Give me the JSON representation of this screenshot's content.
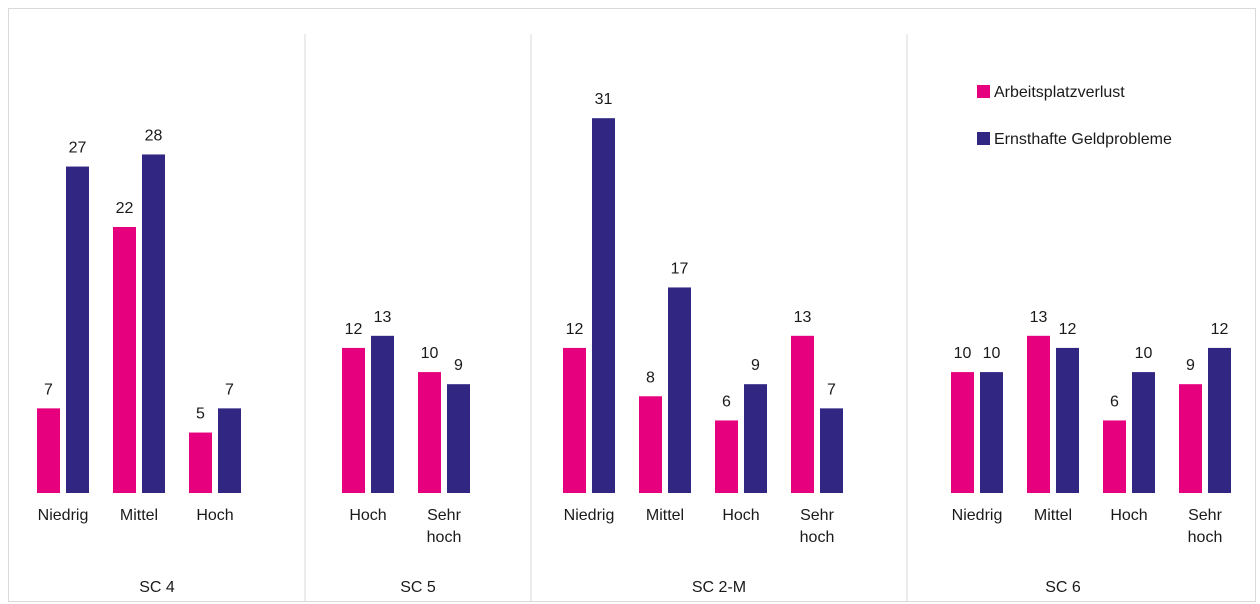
{
  "chart_data": {
    "type": "bar",
    "colors": {
      "Arbeitsplatzverlust": "#e6007e",
      "Ernsthafte Geldprobleme": "#312783"
    },
    "legend": {
      "position": "top-right",
      "entries": [
        "Arbeitsplatzverlust",
        "Ernsthafte Geldprobleme"
      ]
    },
    "ylim": [
      0,
      33
    ],
    "groups": [
      {
        "label": "SC 4",
        "categories": [
          [
            "Niedrig"
          ],
          [
            "Mittel"
          ],
          [
            "Hoch"
          ]
        ],
        "series": [
          {
            "name": "Arbeitsplatzverlust",
            "values": [
              7,
              22,
              5
            ]
          },
          {
            "name": "Ernsthafte Geldprobleme",
            "values": [
              27,
              28,
              7
            ]
          }
        ]
      },
      {
        "label": "SC 5",
        "categories": [
          [
            "Hoch"
          ],
          [
            "Sehr",
            "hoch"
          ]
        ],
        "series": [
          {
            "name": "Arbeitsplatzverlust",
            "values": [
              12,
              10
            ]
          },
          {
            "name": "Ernsthafte Geldprobleme",
            "values": [
              13,
              9
            ]
          }
        ]
      },
      {
        "label": "SC 2-M",
        "categories": [
          [
            "Niedrig"
          ],
          [
            "Mittel"
          ],
          [
            "Hoch"
          ],
          [
            "Sehr",
            "hoch"
          ]
        ],
        "series": [
          {
            "name": "Arbeitsplatzverlust",
            "values": [
              12,
              8,
              6,
              13
            ]
          },
          {
            "name": "Ernsthafte Geldprobleme",
            "values": [
              31,
              17,
              9,
              7
            ]
          }
        ]
      },
      {
        "label": "SC 6",
        "categories": [
          [
            "Niedrig"
          ],
          [
            "Mittel"
          ],
          [
            "Hoch"
          ],
          [
            "Sehr",
            "hoch"
          ]
        ],
        "series": [
          {
            "name": "Arbeitsplatzverlust",
            "values": [
              10,
              13,
              6,
              9
            ]
          },
          {
            "name": "Ernsthafte Geldprobleme",
            "values": [
              10,
              12,
              10,
              12
            ]
          }
        ]
      }
    ]
  }
}
